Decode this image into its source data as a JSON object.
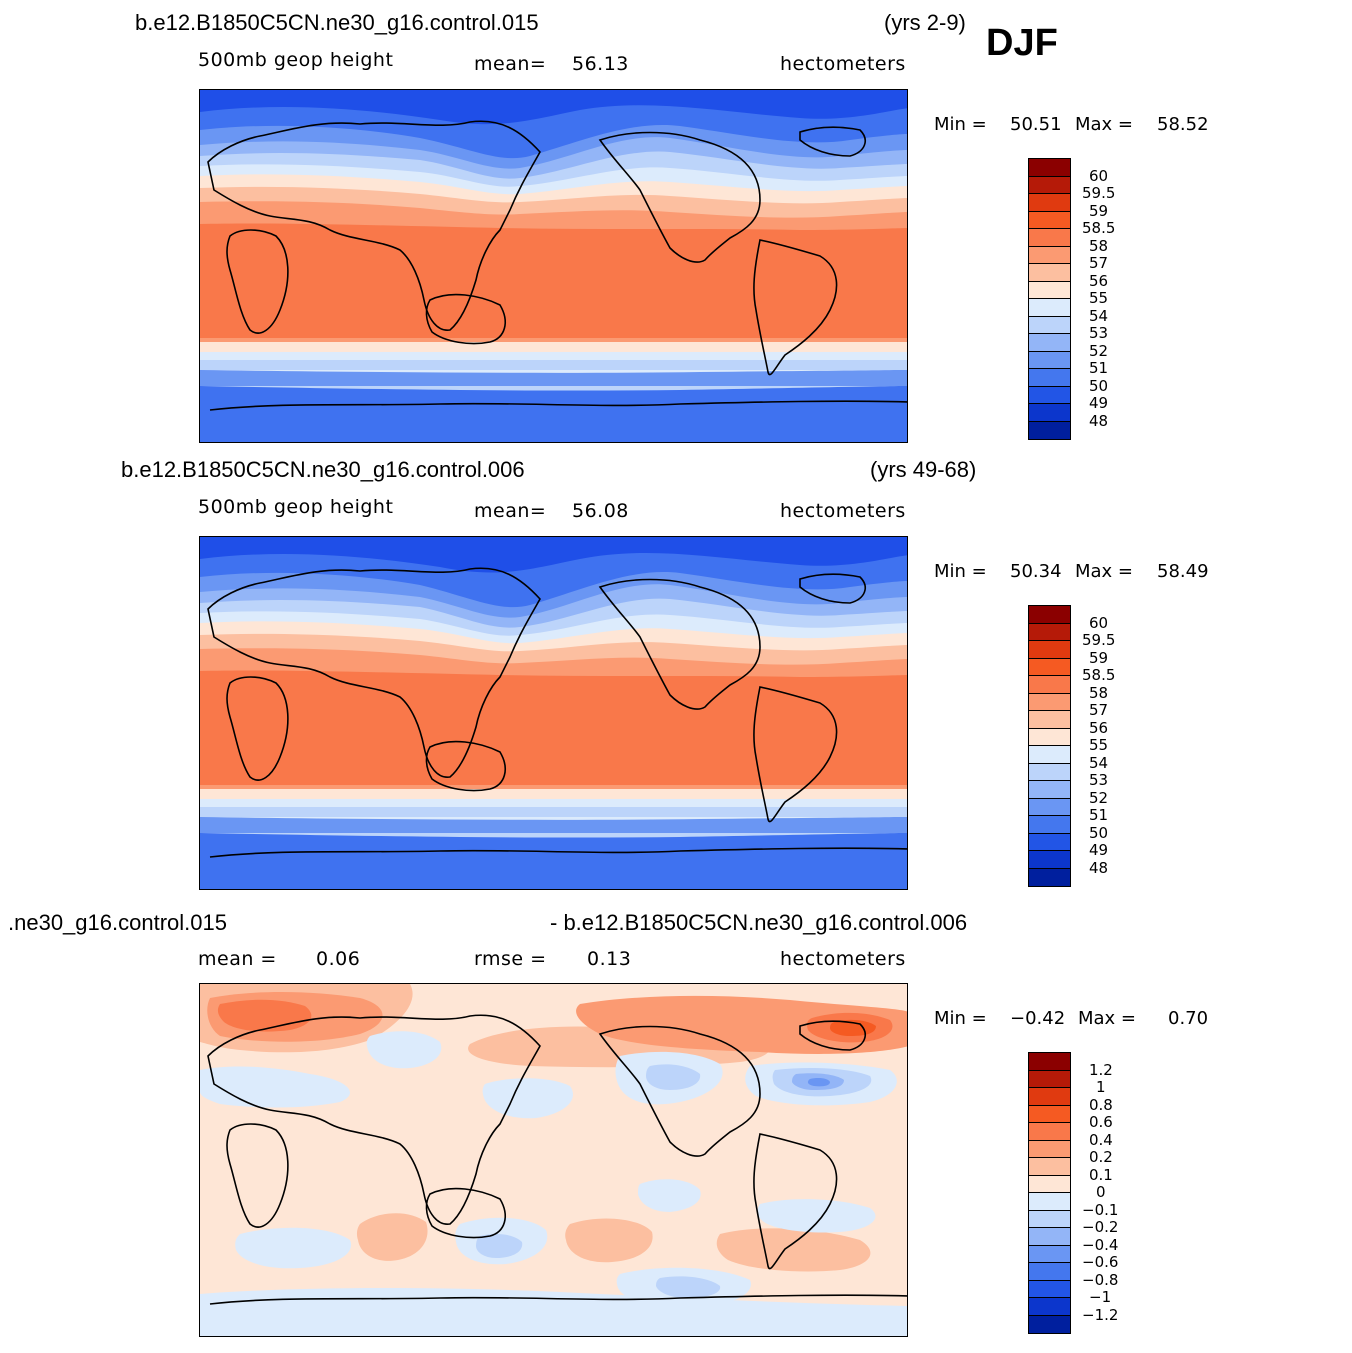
{
  "season_label": "DJF",
  "panels": [
    {
      "case": "b.e12.B1850C5CN.ne30_g16.control.015",
      "years": "(yrs 2-9)",
      "variable": "500mb  geop  height",
      "mean_label": "mean=",
      "mean": "56.13",
      "units": "hectometers",
      "min_label": "Min =",
      "min": "50.51",
      "max_label": "Max =",
      "max": "58.52",
      "colorbar_labels": [
        "60",
        "59.5",
        "59",
        "58.5",
        "58",
        "57",
        "56",
        "55",
        "54",
        "53",
        "52",
        "51",
        "50",
        "49",
        "48"
      ]
    },
    {
      "case": "b.e12.B1850C5CN.ne30_g16.control.006",
      "years": "(yrs 49-68)",
      "variable": "500mb  geop  height",
      "mean_label": "mean=",
      "mean": "56.08",
      "units": "hectometers",
      "min_label": "Min =",
      "min": "50.34",
      "max_label": "Max =",
      "max": "58.49",
      "colorbar_labels": [
        "60",
        "59.5",
        "59",
        "58.5",
        "58",
        "57",
        "56",
        "55",
        "54",
        "53",
        "52",
        "51",
        "50",
        "49",
        "48"
      ]
    },
    {
      "case_left": ".ne30_g16.control.015",
      "case_right": "- b.e12.B1850C5CN.ne30_g16.control.006",
      "mean_label": "mean =",
      "mean": "0.06",
      "rmse_label": "rmse =",
      "rmse": "0.13",
      "units": "hectometers",
      "min_label": "Min =",
      "min": "−0.42",
      "max_label": "Max =",
      "max": "0.70",
      "colorbar_labels": [
        "1.2",
        "1",
        "0.8",
        "0.6",
        "0.4",
        "0.2",
        "0.1",
        "0",
        "−0.1",
        "−0.2",
        "−0.4",
        "−0.6",
        "−0.8",
        "−1",
        "−1.2"
      ]
    }
  ],
  "colorbar_colors": [
    "#8b0000",
    "#b51a08",
    "#e03a10",
    "#f55a22",
    "#f9784a",
    "#fb9a72",
    "#fcbfa0",
    "#fee6d6",
    "#dcebfc",
    "#bcd4fa",
    "#93b5f7",
    "#6a96f3",
    "#4477ee",
    "#2255e6",
    "#0c36cc",
    "#001f9e",
    "#000b80"
  ],
  "map_colors": {
    "deep_blue": "#1f4fe8",
    "blue": "#3f72f0",
    "mid_blue": "#6a96f3",
    "light_blue": "#93b5f7",
    "pale_blue": "#bcd4fa",
    "ice_blue": "#dcebfc",
    "cream": "#fee6d6",
    "peach": "#fcbfa0",
    "salmon": "#fb9a72",
    "orange": "#f9784a",
    "red_orange": "#f55a22"
  }
}
